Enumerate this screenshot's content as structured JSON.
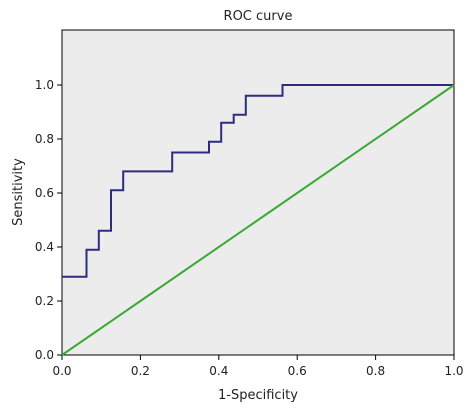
{
  "chart_data": {
    "type": "line",
    "title": "ROC curve",
    "xlabel": "1-Specificity",
    "ylabel": "Sensitivity",
    "xlim": [
      0,
      1.2
    ],
    "ylim": [
      0,
      1.2
    ],
    "x_ticks": [
      0.0,
      0.2,
      0.4,
      0.6,
      0.8,
      1.0
    ],
    "y_ticks": [
      0.0,
      0.2,
      0.4,
      0.6,
      0.8,
      1.0
    ],
    "x_tick_labels": [
      "0.0",
      "0.2",
      "0.4",
      "0.6",
      "0.8",
      "1.0"
    ],
    "y_tick_labels": [
      "0.0",
      "0.2",
      "0.4",
      "0.6",
      "0.8",
      "1.0"
    ],
    "grid": false,
    "plot_background": "#ececec",
    "series": [
      {
        "style": "step",
        "color": "#2e2c7d",
        "points": [
          [
            0.0,
            0.29
          ],
          [
            0.0625,
            0.29
          ],
          [
            0.0625,
            0.39
          ],
          [
            0.094,
            0.39
          ],
          [
            0.094,
            0.46
          ],
          [
            0.125,
            0.46
          ],
          [
            0.125,
            0.61
          ],
          [
            0.156,
            0.61
          ],
          [
            0.156,
            0.68
          ],
          [
            0.281,
            0.68
          ],
          [
            0.281,
            0.75
          ],
          [
            0.375,
            0.75
          ],
          [
            0.375,
            0.79
          ],
          [
            0.406,
            0.79
          ],
          [
            0.406,
            0.86
          ],
          [
            0.438,
            0.86
          ],
          [
            0.438,
            0.89
          ],
          [
            0.469,
            0.89
          ],
          [
            0.469,
            0.96
          ],
          [
            0.5625,
            0.96
          ],
          [
            0.5625,
            1.0
          ],
          [
            1.0,
            1.0
          ]
        ]
      },
      {
        "style": "line",
        "color": "#3aa835",
        "points": [
          [
            0.0,
            0.0
          ],
          [
            1.0,
            1.0
          ]
        ]
      }
    ]
  }
}
